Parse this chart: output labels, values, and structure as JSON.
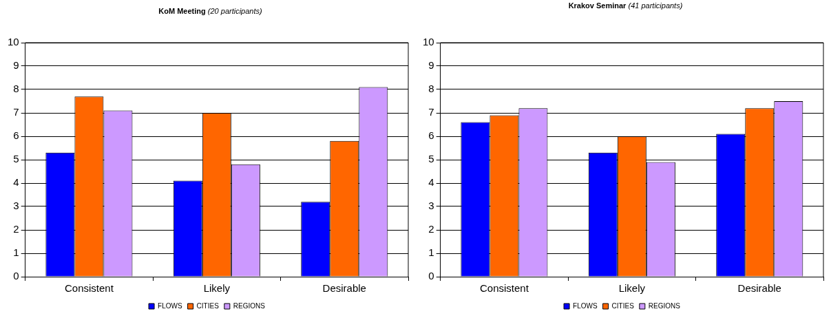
{
  "chart_data": [
    {
      "type": "bar",
      "title": "KoM Meeting",
      "subtitle": "(20 participants)",
      "categories": [
        "Consistent",
        "Likely",
        "Desirable"
      ],
      "series": [
        {
          "name": "FLOWS",
          "color": "#0000ff",
          "values": [
            5.3,
            4.1,
            3.2
          ]
        },
        {
          "name": "CITIES",
          "color": "#ff6600",
          "values": [
            7.7,
            7.0,
            5.8
          ]
        },
        {
          "name": "REGIONS",
          "color": "#cc99ff",
          "values": [
            7.1,
            4.8,
            8.1
          ]
        }
      ],
      "ylim": [
        0,
        10
      ],
      "yticks": [
        0,
        1,
        2,
        3,
        4,
        5,
        6,
        7,
        8,
        9,
        10
      ],
      "grid": "y",
      "legend": "bottom"
    },
    {
      "type": "bar",
      "title": "Krakov Seminar",
      "subtitle": "(41 participants)",
      "categories": [
        "Consistent",
        "Likely",
        "Desirable"
      ],
      "series": [
        {
          "name": "FLOWS",
          "color": "#0000ff",
          "values": [
            6.6,
            5.3,
            6.1
          ]
        },
        {
          "name": "CITIES",
          "color": "#ff6600",
          "values": [
            6.9,
            6.0,
            7.2
          ]
        },
        {
          "name": "REGIONS",
          "color": "#cc99ff",
          "values": [
            7.2,
            4.9,
            7.5
          ]
        }
      ],
      "ylim": [
        0,
        10
      ],
      "yticks": [
        0,
        1,
        2,
        3,
        4,
        5,
        6,
        7,
        8,
        9,
        10
      ],
      "grid": "y",
      "legend": "bottom"
    }
  ]
}
